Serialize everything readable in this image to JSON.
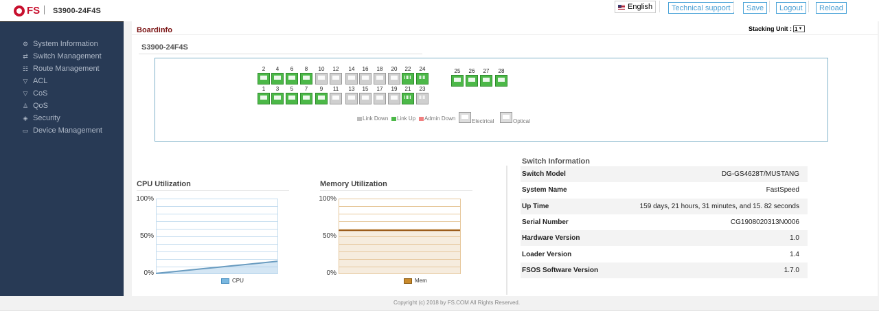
{
  "header": {
    "brand": "FS",
    "device": "S3900-24F4S",
    "language": "English",
    "buttons": {
      "support": "Technical support",
      "save": "Save",
      "logout": "Logout",
      "reload": "Reload"
    }
  },
  "sidebar": {
    "items": [
      {
        "label": "System Information",
        "icon": "gear-icon"
      },
      {
        "label": "Switch Management",
        "icon": "arrows-icon"
      },
      {
        "label": "Route Management",
        "icon": "route-icon"
      },
      {
        "label": "ACL",
        "icon": "wifi-icon"
      },
      {
        "label": "CoS",
        "icon": "wifi-icon"
      },
      {
        "label": "QoS",
        "icon": "users-icon"
      },
      {
        "label": "Security",
        "icon": "shield-icon"
      },
      {
        "label": "Device Management",
        "icon": "monitor-icon"
      }
    ]
  },
  "page": {
    "title": "Boardinfo",
    "stacking_label": "Stacking Unit :",
    "stacking_value": "1",
    "device_label": "S3900-24F4S"
  },
  "ports": {
    "top_row": [
      {
        "num": "2",
        "state": "up",
        "type": "optical"
      },
      {
        "num": "4",
        "state": "up",
        "type": "optical"
      },
      {
        "num": "6",
        "state": "up",
        "type": "optical"
      },
      {
        "num": "8",
        "state": "up",
        "type": "optical"
      },
      {
        "num": "10",
        "state": "down",
        "type": "optical"
      },
      {
        "num": "12",
        "state": "down",
        "type": "optical"
      },
      {
        "num": "14",
        "state": "down",
        "type": "optical"
      },
      {
        "num": "16",
        "state": "down",
        "type": "optical"
      },
      {
        "num": "18",
        "state": "down",
        "type": "optical"
      },
      {
        "num": "20",
        "state": "down",
        "type": "optical"
      },
      {
        "num": "22",
        "state": "up",
        "type": "electrical"
      },
      {
        "num": "24",
        "state": "up",
        "type": "electrical"
      }
    ],
    "bottom_row": [
      {
        "num": "1",
        "state": "up",
        "type": "optical"
      },
      {
        "num": "3",
        "state": "up",
        "type": "optical"
      },
      {
        "num": "5",
        "state": "up",
        "type": "optical"
      },
      {
        "num": "7",
        "state": "up",
        "type": "optical"
      },
      {
        "num": "9",
        "state": "up",
        "type": "optical"
      },
      {
        "num": "11",
        "state": "down",
        "type": "optical"
      },
      {
        "num": "13",
        "state": "down",
        "type": "optical"
      },
      {
        "num": "15",
        "state": "down",
        "type": "optical"
      },
      {
        "num": "17",
        "state": "down",
        "type": "optical"
      },
      {
        "num": "19",
        "state": "down",
        "type": "optical"
      },
      {
        "num": "21",
        "state": "up",
        "type": "electrical"
      },
      {
        "num": "23",
        "state": "down",
        "type": "electrical"
      }
    ],
    "uplinks": [
      {
        "num": "25",
        "state": "up",
        "type": "optical"
      },
      {
        "num": "26",
        "state": "up",
        "type": "optical"
      },
      {
        "num": "27",
        "state": "up",
        "type": "optical"
      },
      {
        "num": "28",
        "state": "up",
        "type": "optical"
      }
    ],
    "legend": {
      "link_down": "Link Down",
      "link_up": "Link Up",
      "admin_down": "Admin Down",
      "electrical": "Electrical",
      "optical": "Optical"
    },
    "colors": {
      "up": "#4cb848",
      "down": "#cfcfcf",
      "admin_down": "#f08080"
    }
  },
  "cpu": {
    "title": "CPU Utilization",
    "legend": "CPU",
    "color": "#7ab8e0",
    "ticks": [
      "100%",
      "50%",
      "0%"
    ]
  },
  "memory": {
    "title": "Memory Utilization",
    "legend": "Mem",
    "color": "#c98a2c",
    "ticks": [
      "100%",
      "50%",
      "0%"
    ]
  },
  "chart_data": [
    {
      "type": "area",
      "title": "CPU Utilization",
      "series": [
        {
          "name": "CPU",
          "values": [
            1,
            3,
            5,
            7,
            9,
            11,
            13,
            15,
            17
          ]
        }
      ],
      "ylim": [
        0,
        100
      ],
      "ytick_labels": [
        "100%",
        "50%",
        "0%"
      ]
    },
    {
      "type": "area",
      "title": "Memory Utilization",
      "series": [
        {
          "name": "Mem",
          "values": [
            58,
            58,
            58,
            58,
            58,
            58,
            58,
            58,
            58
          ]
        }
      ],
      "ylim": [
        0,
        100
      ],
      "ytick_labels": [
        "100%",
        "50%",
        "0%"
      ]
    }
  ],
  "switch_info": {
    "title": "Switch Information",
    "rows": [
      {
        "key": "Switch Model",
        "value": "DG-GS4628T/MUSTANG"
      },
      {
        "key": "System Name",
        "value": "FastSpeed"
      },
      {
        "key": "Up Time",
        "value": "159 days, 21 hours, 31 minutes, and 15. 82 seconds"
      },
      {
        "key": "Serial Number",
        "value": "CG1908020313N0006"
      },
      {
        "key": "Hardware Version",
        "value": "1.0"
      },
      {
        "key": "Loader Version",
        "value": "1.4"
      },
      {
        "key": "FSOS Software Version",
        "value": "1.7.0"
      }
    ]
  },
  "footer": "Copyright (c) 2018 by FS.COM All Rights Reserved."
}
